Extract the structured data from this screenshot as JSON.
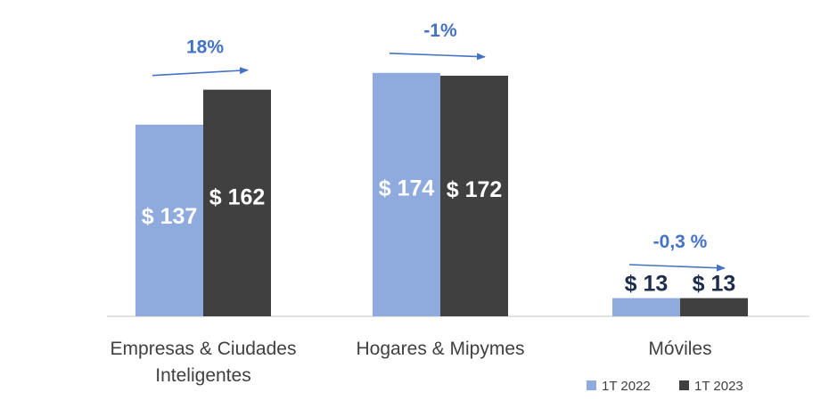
{
  "chart_data": {
    "type": "bar",
    "categories": [
      "Empresas & Ciudades\nInteligentes",
      "Hogares & Mipymes",
      "Móviles"
    ],
    "series": [
      {
        "name": "1T 2022",
        "values": [
          137,
          174,
          13
        ],
        "color": "#8faadc"
      },
      {
        "name": "1T 2023",
        "values": [
          162,
          172,
          13
        ],
        "color": "#404040"
      }
    ],
    "data_labels": [
      [
        "$ 137",
        "$ 174",
        "$ 13"
      ],
      [
        "$ 162",
        "$ 172",
        "$ 13"
      ]
    ],
    "changes": [
      "18%",
      "-1%",
      "-0,3 %"
    ],
    "change_color": "#4472c4",
    "ylim": [
      0,
      180
    ],
    "legend_position": "bottom-right",
    "grid": false
  }
}
